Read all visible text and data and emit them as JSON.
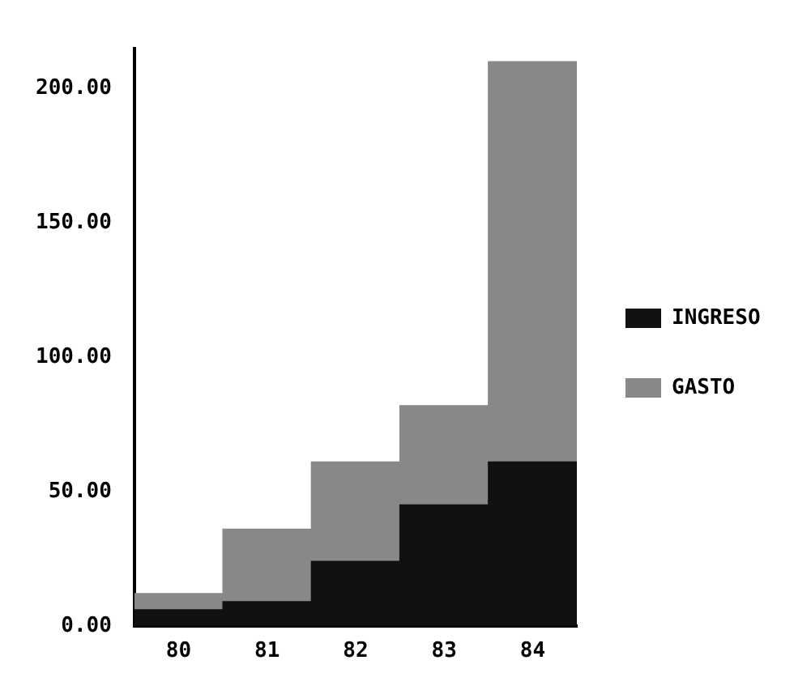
{
  "chart_data": {
    "type": "bar",
    "stacked": true,
    "categories": [
      "80",
      "81",
      "82",
      "83",
      "84"
    ],
    "series": [
      {
        "name": "INGRESO",
        "color": "#111111",
        "values": [
          6,
          9,
          24,
          45,
          61
        ]
      },
      {
        "name": "GASTO",
        "color": "#888888",
        "values": [
          6,
          27,
          37,
          37,
          149
        ]
      }
    ],
    "ylim": [
      0,
      215
    ],
    "yticks": [
      {
        "value": 0,
        "label": "0.00"
      },
      {
        "value": 50,
        "label": "50.00"
      },
      {
        "value": 100,
        "label": "100.00"
      },
      {
        "value": 150,
        "label": "150.00"
      },
      {
        "value": 200,
        "label": "200.00"
      }
    ],
    "grid": false,
    "legend": "right"
  }
}
